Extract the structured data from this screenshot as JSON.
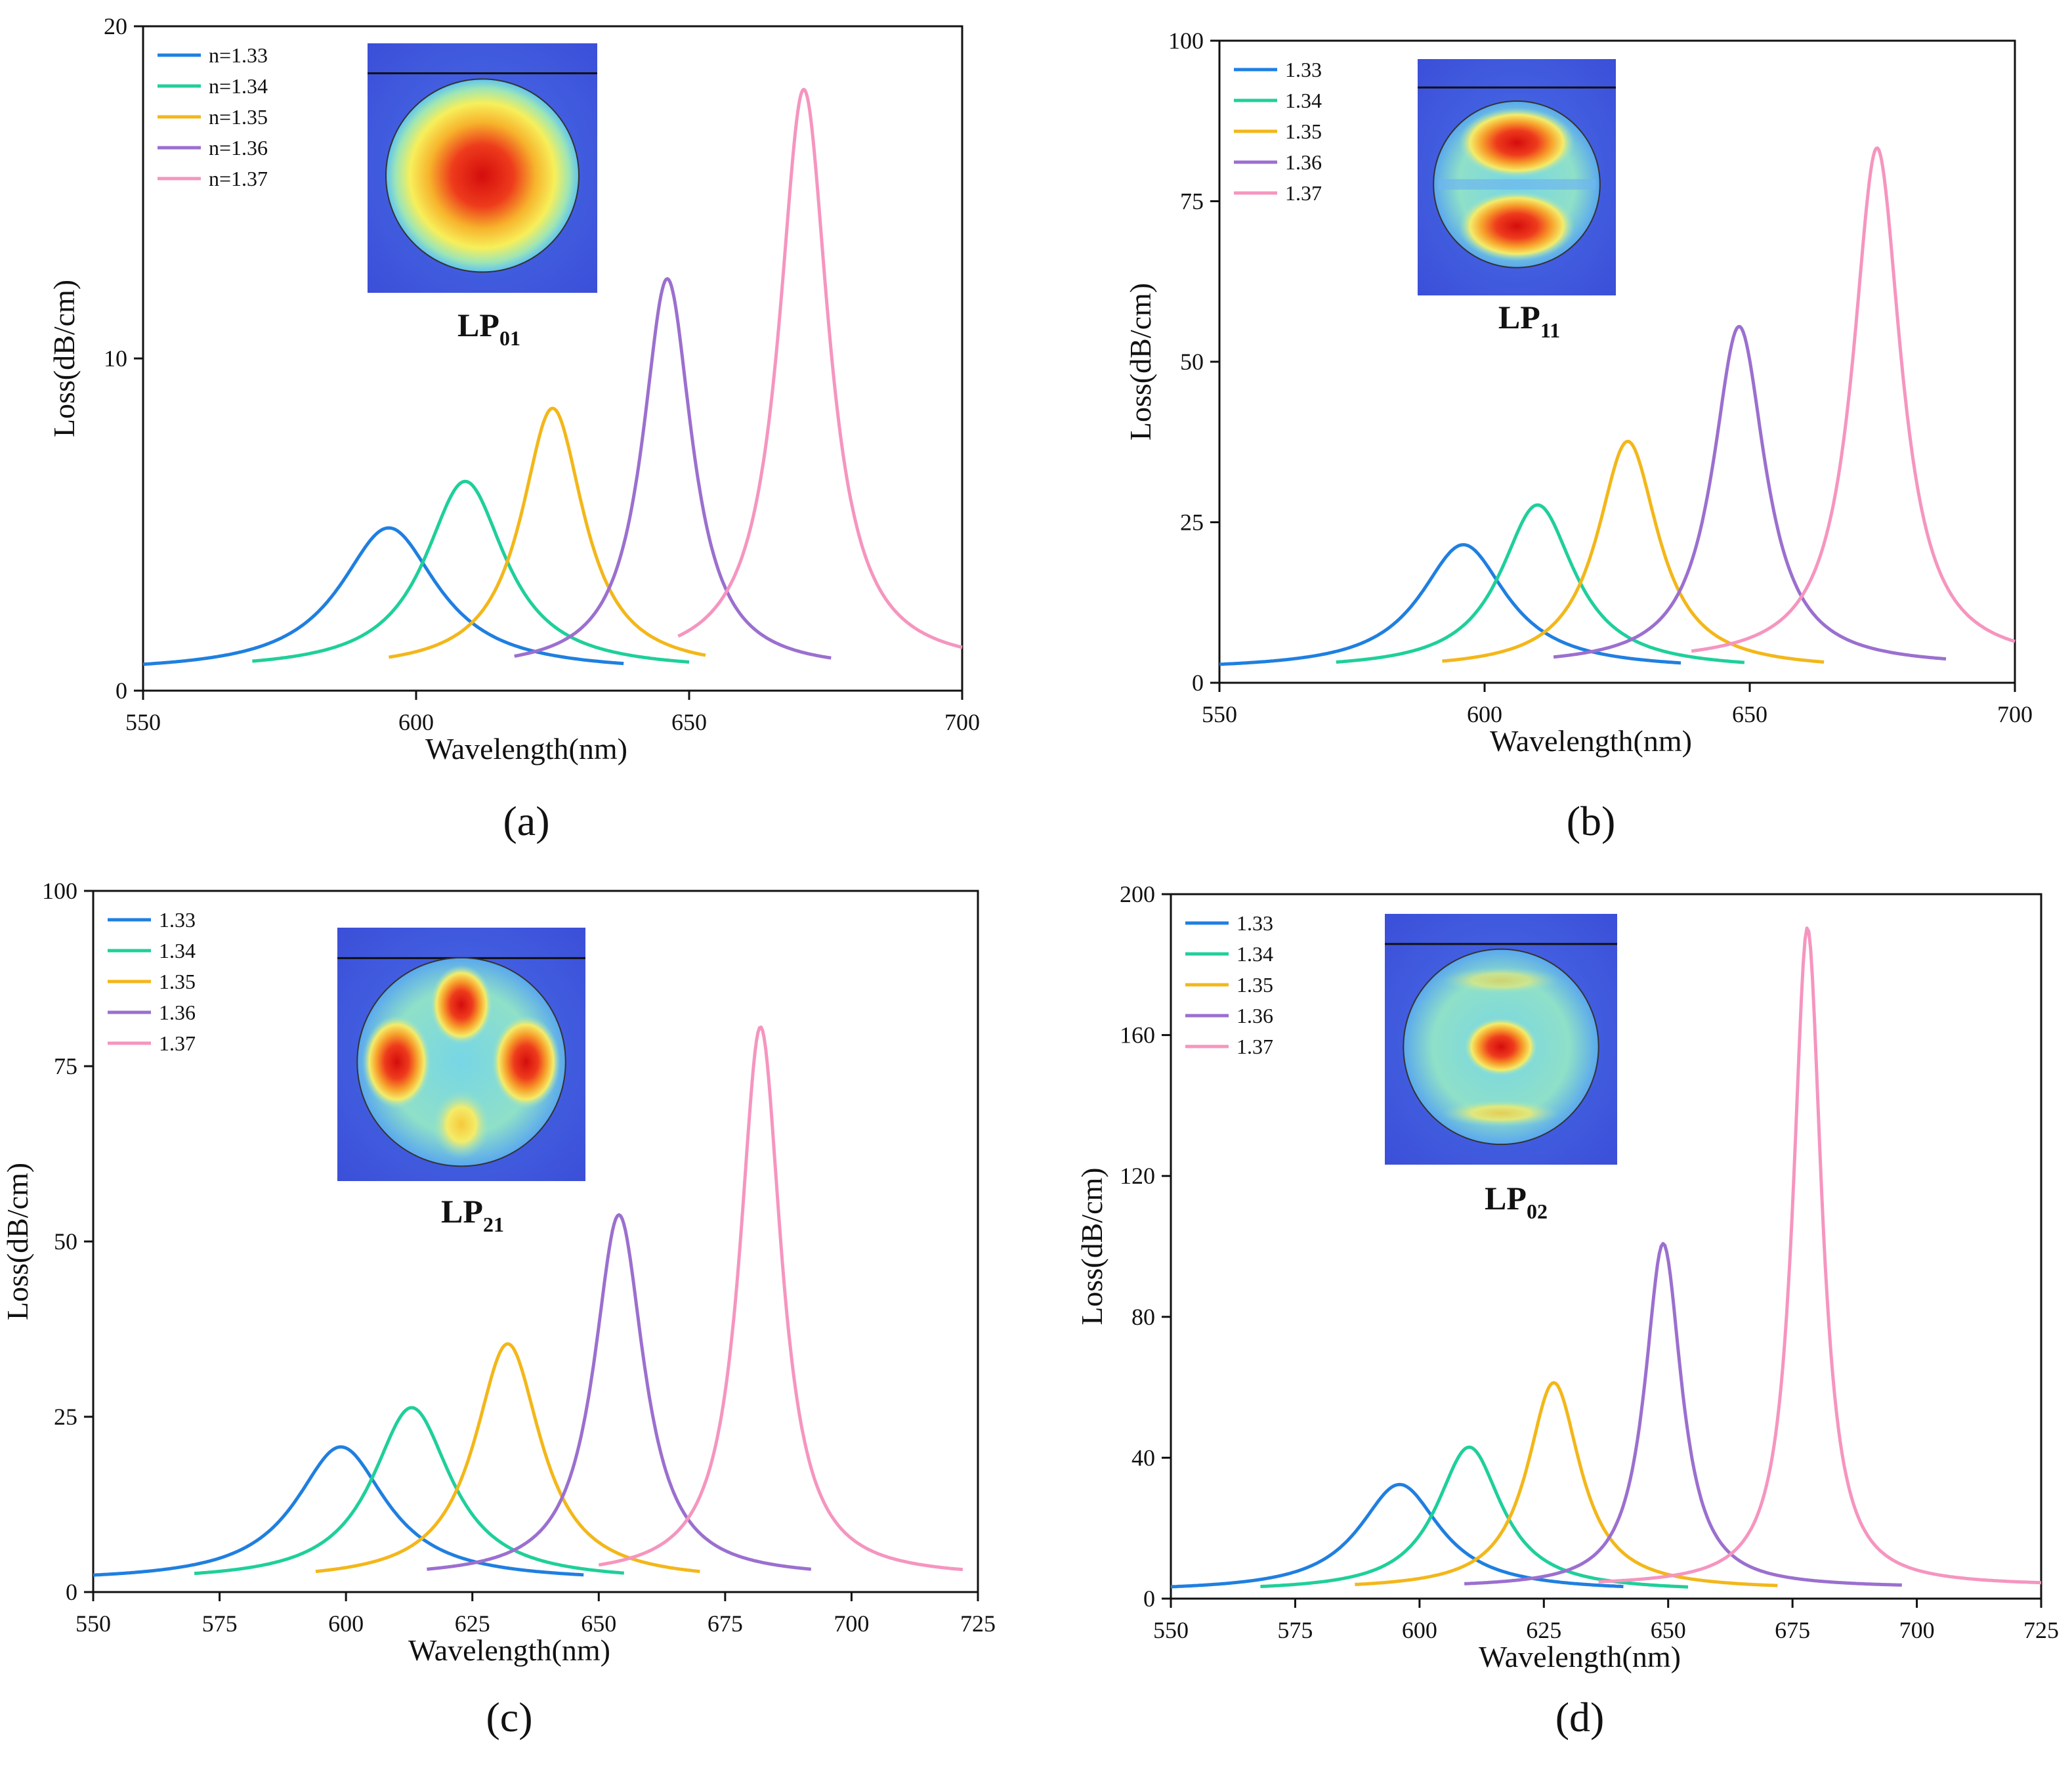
{
  "figure": {
    "panels": [
      {
        "label": "(a)",
        "mode": "LP",
        "mode_sub": "01",
        "inset": "lp01",
        "chart_data": {
          "type": "line",
          "title": "",
          "xlabel": "Wavelength(nm)",
          "ylabel": "Loss(dB/cm)",
          "xlim": [
            550,
            700
          ],
          "ylim": [
            0,
            20
          ],
          "xticks": [
            "550",
            "600",
            "650",
            "700"
          ],
          "yticks": [
            "0",
            "10",
            "20"
          ],
          "legend_position": "top-left",
          "series": [
            {
              "name": "n=1.33",
              "color": "#1f7fe0",
              "range": [
                550,
                638
              ],
              "peak": [
                595,
                4.9
              ],
              "base": 0.55,
              "gamma": 22
            },
            {
              "name": "n=1.34",
              "color": "#1fcf9a",
              "range": [
                570,
                650
              ],
              "peak": [
                609,
                6.3
              ],
              "base": 0.6,
              "gamma": 18
            },
            {
              "name": "n=1.35",
              "color": "#f3b71a",
              "range": [
                595,
                653
              ],
              "peak": [
                625,
                8.5
              ],
              "base": 0.6,
              "gamma": 14
            },
            {
              "name": "n=1.36",
              "color": "#9b6fcf",
              "range": [
                618,
                676
              ],
              "peak": [
                646,
                12.4
              ],
              "base": 0.6,
              "gamma": 11
            },
            {
              "name": "n=1.37",
              "color": "#f595bf",
              "range": [
                648,
                700
              ],
              "peak": [
                671,
                18.1
              ],
              "base": 0.7,
              "gamma": 11
            }
          ]
        }
      },
      {
        "label": "(b)",
        "mode": "LP",
        "mode_sub": "11",
        "inset": "lp11",
        "chart_data": {
          "type": "line",
          "title": "",
          "xlabel": "Wavelength(nm)",
          "ylabel": "Loss(dB/cm)",
          "xlim": [
            550,
            700
          ],
          "ylim": [
            0,
            100
          ],
          "xticks": [
            "550",
            "600",
            "650",
            "700"
          ],
          "yticks": [
            "0",
            "25",
            "50",
            "75",
            "100"
          ],
          "legend_position": "top-left",
          "series": [
            {
              "name": "1.33",
              "color": "#1f7fe0",
              "range": [
                550,
                637
              ],
              "peak": [
                596,
                21.5
              ],
              "base": 2,
              "gamma": 20
            },
            {
              "name": "1.34",
              "color": "#1fcf9a",
              "range": [
                572,
                649
              ],
              "peak": [
                610,
                27.7
              ],
              "base": 2,
              "gamma": 17
            },
            {
              "name": "1.35",
              "color": "#f3b71a",
              "range": [
                592,
                664
              ],
              "peak": [
                627,
                37.6
              ],
              "base": 2,
              "gamma": 14
            },
            {
              "name": "1.36",
              "color": "#9b6fcf",
              "range": [
                613,
                687
              ],
              "peak": [
                648,
                55.5
              ],
              "base": 2.5,
              "gamma": 12
            },
            {
              "name": "1.37",
              "color": "#f595bf",
              "range": [
                639,
                700
              ],
              "peak": [
                674,
                83.3
              ],
              "base": 3,
              "gamma": 11
            }
          ]
        }
      },
      {
        "label": "(c)",
        "mode": "LP",
        "mode_sub": "21",
        "inset": "lp21",
        "chart_data": {
          "type": "line",
          "title": "",
          "xlabel": "Wavelength(nm)",
          "ylabel": "Loss(dB/cm)",
          "xlim": [
            550,
            725
          ],
          "ylim": [
            0,
            100
          ],
          "xticks": [
            "550",
            "575",
            "600",
            "625",
            "650",
            "675",
            "700",
            "725"
          ],
          "yticks": [
            "0",
            "25",
            "50",
            "75",
            "100"
          ],
          "legend_position": "top-left",
          "series": [
            {
              "name": "1.33",
              "color": "#1f7fe0",
              "range": [
                550,
                647
              ],
              "peak": [
                599,
                20.7
              ],
              "base": 1.5,
              "gamma": 22
            },
            {
              "name": "1.34",
              "color": "#1fcf9a",
              "range": [
                570,
                655
              ],
              "peak": [
                613,
                26.3
              ],
              "base": 1.5,
              "gamma": 19
            },
            {
              "name": "1.35",
              "color": "#f3b71a",
              "range": [
                594,
                670
              ],
              "peak": [
                632,
                35.4
              ],
              "base": 1.5,
              "gamma": 16
            },
            {
              "name": "1.36",
              "color": "#9b6fcf",
              "range": [
                616,
                692
              ],
              "peak": [
                654,
                53.8
              ],
              "base": 2,
              "gamma": 12
            },
            {
              "name": "1.37",
              "color": "#f595bf",
              "range": [
                650,
                722
              ],
              "peak": [
                682,
                80.6
              ],
              "base": 2,
              "gamma": 10
            }
          ]
        }
      },
      {
        "label": "(d)",
        "mode": "LP",
        "mode_sub": "02",
        "inset": "lp02",
        "chart_data": {
          "type": "line",
          "title": "",
          "xlabel": "Wavelength(nm)",
          "ylabel": "Loss(dB/cm)",
          "xlim": [
            550,
            725
          ],
          "ylim": [
            0,
            200
          ],
          "xticks": [
            "550",
            "575",
            "600",
            "625",
            "650",
            "675",
            "700",
            "725"
          ],
          "yticks": [
            "0",
            "40",
            "80",
            "120",
            "160",
            "200"
          ],
          "legend_position": "top-left",
          "series": [
            {
              "name": "1.33",
              "color": "#1f7fe0",
              "range": [
                550,
                641
              ],
              "peak": [
                596,
                32.4
              ],
              "base": 2,
              "gamma": 20
            },
            {
              "name": "1.34",
              "color": "#1fcf9a",
              "range": [
                568,
                654
              ],
              "peak": [
                610,
                43.0
              ],
              "base": 2,
              "gamma": 16
            },
            {
              "name": "1.35",
              "color": "#f3b71a",
              "range": [
                587,
                672
              ],
              "peak": [
                627,
                61.3
              ],
              "base": 2.5,
              "gamma": 13
            },
            {
              "name": "1.36",
              "color": "#9b6fcf",
              "range": [
                609,
                697
              ],
              "peak": [
                649,
                100.8
              ],
              "base": 3,
              "gamma": 9
            },
            {
              "name": "1.37",
              "color": "#f595bf",
              "range": [
                636,
                725
              ],
              "peak": [
                678,
                190.5
              ],
              "base": 3.5,
              "gamma": 7
            }
          ]
        }
      }
    ]
  }
}
